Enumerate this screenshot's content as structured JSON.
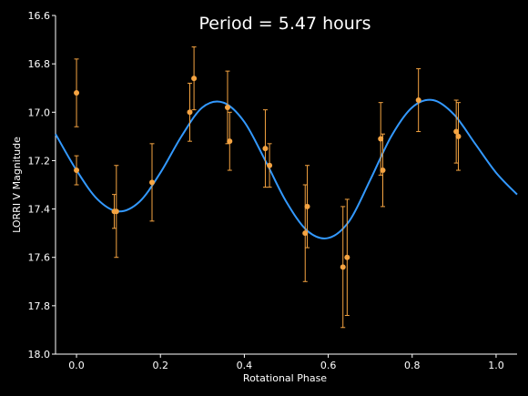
{
  "chart_data": {
    "type": "scatter",
    "title": "Period = 5.47 hours",
    "xlabel": "Rotational Phase",
    "ylabel": "LORRI V Magnitude",
    "xlim": [
      -0.05,
      1.05
    ],
    "ylim": [
      16.6,
      18.0
    ],
    "y_inverted": true,
    "x_ticks": [
      "0.0",
      "0.2",
      "0.4",
      "0.6",
      "0.8",
      "1.0"
    ],
    "y_ticks": [
      "16.6",
      "16.8",
      "17.0",
      "17.2",
      "17.4",
      "17.6",
      "17.8",
      "18.0"
    ],
    "grid": false,
    "colors": {
      "points": "#f5a442",
      "curve": "#3399ff",
      "background": "#000000",
      "axes": "#ffffff"
    },
    "series": [
      {
        "type": "scatter-errorbar",
        "points": [
          {
            "x": 0.0,
            "y": 16.92,
            "err": 0.14
          },
          {
            "x": 0.0,
            "y": 17.24,
            "err": 0.06
          },
          {
            "x": 0.09,
            "y": 17.41,
            "err": 0.07
          },
          {
            "x": 0.095,
            "y": 17.41,
            "err": 0.19
          },
          {
            "x": 0.18,
            "y": 17.29,
            "err": 0.16
          },
          {
            "x": 0.27,
            "y": 17.0,
            "err": 0.12
          },
          {
            "x": 0.28,
            "y": 16.86,
            "err": 0.13
          },
          {
            "x": 0.36,
            "y": 16.98,
            "err": 0.15
          },
          {
            "x": 0.365,
            "y": 17.12,
            "err": 0.12
          },
          {
            "x": 0.45,
            "y": 17.15,
            "err": 0.16
          },
          {
            "x": 0.46,
            "y": 17.22,
            "err": 0.09
          },
          {
            "x": 0.545,
            "y": 17.5,
            "err": 0.2
          },
          {
            "x": 0.55,
            "y": 17.39,
            "err": 0.17
          },
          {
            "x": 0.635,
            "y": 17.64,
            "err": 0.25
          },
          {
            "x": 0.645,
            "y": 17.6,
            "err": 0.24
          },
          {
            "x": 0.725,
            "y": 17.11,
            "err": 0.15
          },
          {
            "x": 0.73,
            "y": 17.24,
            "err": 0.15
          },
          {
            "x": 0.815,
            "y": 16.95,
            "err": 0.13
          },
          {
            "x": 0.905,
            "y": 17.08,
            "err": 0.13
          },
          {
            "x": 0.91,
            "y": 17.1,
            "err": 0.14
          }
        ]
      },
      {
        "type": "line",
        "model": "double-sinusoid fit",
        "x": [
          -0.05,
          0.0,
          0.05,
          0.1,
          0.15,
          0.2,
          0.25,
          0.3,
          0.35,
          0.4,
          0.45,
          0.5,
          0.55,
          0.6,
          0.65,
          0.7,
          0.75,
          0.8,
          0.85,
          0.9,
          0.95,
          1.0,
          1.05
        ],
        "y": [
          17.09,
          17.24,
          17.36,
          17.41,
          17.37,
          17.25,
          17.1,
          16.98,
          16.96,
          17.04,
          17.2,
          17.37,
          17.49,
          17.52,
          17.45,
          17.28,
          17.1,
          16.98,
          16.95,
          17.01,
          17.13,
          17.25,
          17.34
        ]
      }
    ]
  }
}
